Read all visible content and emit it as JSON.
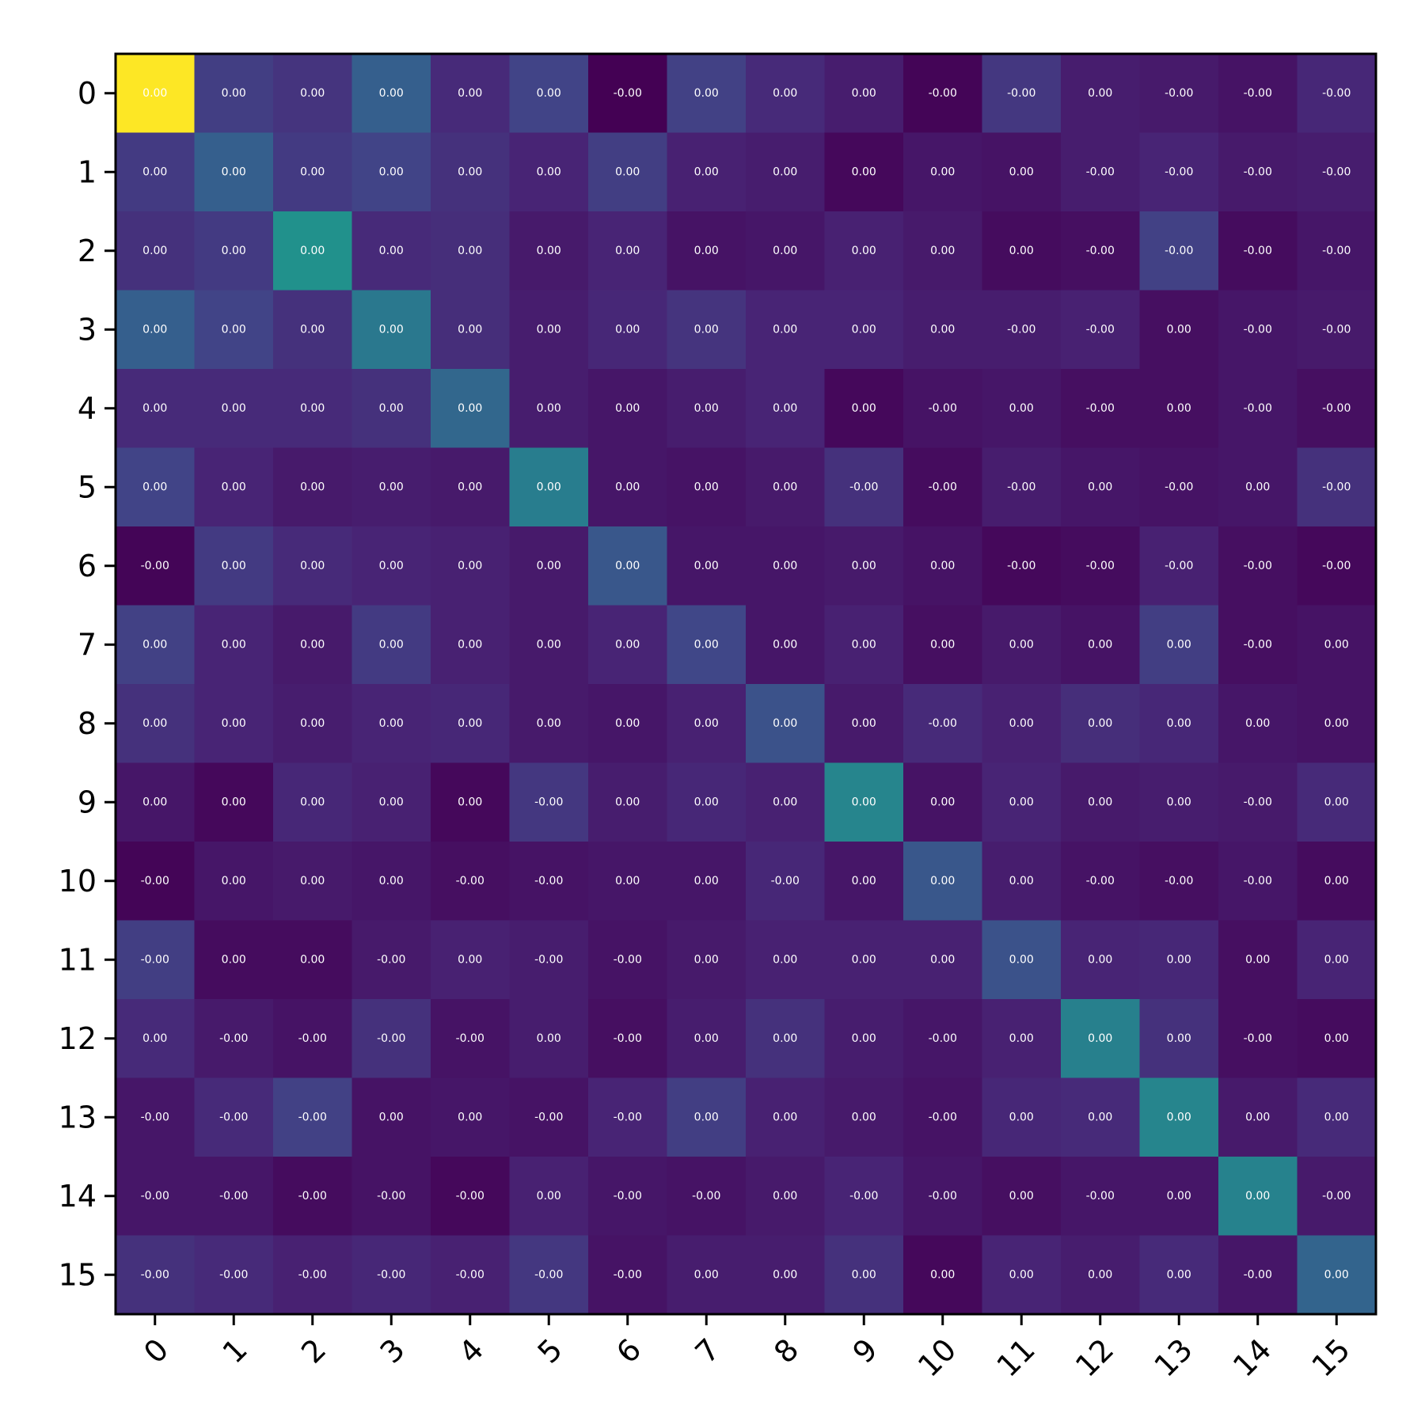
{
  "chart_data": {
    "type": "heatmap",
    "title": "",
    "xlabel": "",
    "ylabel": "",
    "colormap": "viridis",
    "x_categories": [
      "0",
      "1",
      "2",
      "3",
      "4",
      "5",
      "6",
      "7",
      "8",
      "9",
      "10",
      "11",
      "12",
      "13",
      "14",
      "15"
    ],
    "y_categories": [
      "0",
      "1",
      "2",
      "3",
      "4",
      "5",
      "6",
      "7",
      "8",
      "9",
      "10",
      "11",
      "12",
      "13",
      "14",
      "15"
    ],
    "x_tick_rotation_deg": 45,
    "color_range": [
      0,
      1
    ],
    "intensity": [
      [
        1.0,
        0.18,
        0.15,
        0.3,
        0.12,
        0.2,
        0.0,
        0.19,
        0.12,
        0.08,
        0.01,
        0.16,
        0.08,
        0.07,
        0.05,
        0.11
      ],
      [
        0.17,
        0.3,
        0.17,
        0.2,
        0.14,
        0.1,
        0.18,
        0.09,
        0.08,
        0.02,
        0.06,
        0.05,
        0.08,
        0.1,
        0.07,
        0.08
      ],
      [
        0.14,
        0.17,
        0.5,
        0.12,
        0.13,
        0.07,
        0.1,
        0.05,
        0.06,
        0.09,
        0.07,
        0.03,
        0.04,
        0.19,
        0.03,
        0.06
      ],
      [
        0.3,
        0.2,
        0.14,
        0.4,
        0.13,
        0.08,
        0.11,
        0.15,
        0.1,
        0.1,
        0.08,
        0.08,
        0.09,
        0.04,
        0.06,
        0.07
      ],
      [
        0.12,
        0.12,
        0.12,
        0.14,
        0.33,
        0.08,
        0.06,
        0.08,
        0.1,
        0.02,
        0.05,
        0.06,
        0.04,
        0.04,
        0.06,
        0.04
      ],
      [
        0.2,
        0.1,
        0.07,
        0.08,
        0.07,
        0.42,
        0.06,
        0.05,
        0.07,
        0.14,
        0.03,
        0.08,
        0.06,
        0.05,
        0.06,
        0.14
      ],
      [
        0.01,
        0.17,
        0.12,
        0.1,
        0.09,
        0.07,
        0.27,
        0.06,
        0.06,
        0.07,
        0.05,
        0.02,
        0.03,
        0.09,
        0.04,
        0.02
      ],
      [
        0.19,
        0.1,
        0.07,
        0.17,
        0.09,
        0.07,
        0.1,
        0.21,
        0.06,
        0.09,
        0.04,
        0.07,
        0.05,
        0.18,
        0.04,
        0.05
      ],
      [
        0.14,
        0.1,
        0.08,
        0.1,
        0.11,
        0.07,
        0.06,
        0.09,
        0.25,
        0.07,
        0.12,
        0.09,
        0.13,
        0.11,
        0.06,
        0.05
      ],
      [
        0.06,
        0.02,
        0.11,
        0.09,
        0.02,
        0.16,
        0.08,
        0.11,
        0.09,
        0.45,
        0.05,
        0.1,
        0.07,
        0.08,
        0.07,
        0.12
      ],
      [
        0.01,
        0.06,
        0.07,
        0.06,
        0.04,
        0.05,
        0.06,
        0.06,
        0.11,
        0.06,
        0.27,
        0.08,
        0.05,
        0.04,
        0.06,
        0.03
      ],
      [
        0.18,
        0.03,
        0.03,
        0.07,
        0.09,
        0.08,
        0.05,
        0.07,
        0.09,
        0.09,
        0.09,
        0.25,
        0.1,
        0.11,
        0.04,
        0.1
      ],
      [
        0.12,
        0.07,
        0.05,
        0.14,
        0.05,
        0.08,
        0.04,
        0.08,
        0.14,
        0.08,
        0.06,
        0.09,
        0.43,
        0.14,
        0.04,
        0.03
      ],
      [
        0.06,
        0.12,
        0.19,
        0.05,
        0.06,
        0.05,
        0.1,
        0.18,
        0.09,
        0.07,
        0.05,
        0.11,
        0.12,
        0.45,
        0.07,
        0.12
      ],
      [
        0.06,
        0.06,
        0.03,
        0.05,
        0.02,
        0.09,
        0.06,
        0.05,
        0.07,
        0.1,
        0.06,
        0.04,
        0.06,
        0.06,
        0.44,
        0.07
      ],
      [
        0.14,
        0.12,
        0.09,
        0.11,
        0.09,
        0.16,
        0.05,
        0.08,
        0.08,
        0.14,
        0.02,
        0.1,
        0.08,
        0.12,
        0.06,
        0.32
      ]
    ],
    "cell_labels": [
      [
        "0.00",
        "0.00",
        "0.00",
        "0.00",
        "0.00",
        "0.00",
        "-0.00",
        "0.00",
        "0.00",
        "0.00",
        "-0.00",
        "-0.00",
        "0.00",
        "-0.00",
        "-0.00",
        "-0.00"
      ],
      [
        "0.00",
        "0.00",
        "0.00",
        "0.00",
        "0.00",
        "0.00",
        "0.00",
        "0.00",
        "0.00",
        "0.00",
        "0.00",
        "0.00",
        "-0.00",
        "-0.00",
        "-0.00",
        "-0.00"
      ],
      [
        "0.00",
        "0.00",
        "0.00",
        "0.00",
        "0.00",
        "0.00",
        "0.00",
        "0.00",
        "0.00",
        "0.00",
        "0.00",
        "0.00",
        "-0.00",
        "-0.00",
        "-0.00",
        "-0.00"
      ],
      [
        "0.00",
        "0.00",
        "0.00",
        "0.00",
        "0.00",
        "0.00",
        "0.00",
        "0.00",
        "0.00",
        "0.00",
        "0.00",
        "-0.00",
        "-0.00",
        "0.00",
        "-0.00",
        "-0.00"
      ],
      [
        "0.00",
        "0.00",
        "0.00",
        "0.00",
        "0.00",
        "0.00",
        "0.00",
        "0.00",
        "0.00",
        "0.00",
        "-0.00",
        "0.00",
        "-0.00",
        "0.00",
        "-0.00",
        "-0.00"
      ],
      [
        "0.00",
        "0.00",
        "0.00",
        "0.00",
        "0.00",
        "0.00",
        "0.00",
        "0.00",
        "0.00",
        "-0.00",
        "-0.00",
        "-0.00",
        "0.00",
        "-0.00",
        "0.00",
        "-0.00"
      ],
      [
        "-0.00",
        "0.00",
        "0.00",
        "0.00",
        "0.00",
        "0.00",
        "0.00",
        "0.00",
        "0.00",
        "0.00",
        "0.00",
        "-0.00",
        "-0.00",
        "-0.00",
        "-0.00",
        "-0.00"
      ],
      [
        "0.00",
        "0.00",
        "0.00",
        "0.00",
        "0.00",
        "0.00",
        "0.00",
        "0.00",
        "0.00",
        "0.00",
        "0.00",
        "0.00",
        "0.00",
        "0.00",
        "-0.00",
        "0.00"
      ],
      [
        "0.00",
        "0.00",
        "0.00",
        "0.00",
        "0.00",
        "0.00",
        "0.00",
        "0.00",
        "0.00",
        "0.00",
        "-0.00",
        "0.00",
        "0.00",
        "0.00",
        "0.00",
        "0.00"
      ],
      [
        "0.00",
        "0.00",
        "0.00",
        "0.00",
        "0.00",
        "-0.00",
        "0.00",
        "0.00",
        "0.00",
        "0.00",
        "0.00",
        "0.00",
        "0.00",
        "0.00",
        "-0.00",
        "0.00"
      ],
      [
        "-0.00",
        "0.00",
        "0.00",
        "0.00",
        "-0.00",
        "-0.00",
        "0.00",
        "0.00",
        "-0.00",
        "0.00",
        "0.00",
        "0.00",
        "-0.00",
        "-0.00",
        "-0.00",
        "0.00"
      ],
      [
        "-0.00",
        "0.00",
        "0.00",
        "-0.00",
        "0.00",
        "-0.00",
        "-0.00",
        "0.00",
        "0.00",
        "0.00",
        "0.00",
        "0.00",
        "0.00",
        "0.00",
        "0.00",
        "0.00"
      ],
      [
        "0.00",
        "-0.00",
        "-0.00",
        "-0.00",
        "-0.00",
        "0.00",
        "-0.00",
        "0.00",
        "0.00",
        "0.00",
        "-0.00",
        "0.00",
        "0.00",
        "0.00",
        "-0.00",
        "0.00"
      ],
      [
        "-0.00",
        "-0.00",
        "-0.00",
        "0.00",
        "0.00",
        "-0.00",
        "-0.00",
        "0.00",
        "0.00",
        "0.00",
        "-0.00",
        "0.00",
        "0.00",
        "0.00",
        "0.00",
        "0.00"
      ],
      [
        "-0.00",
        "-0.00",
        "-0.00",
        "-0.00",
        "-0.00",
        "0.00",
        "-0.00",
        "-0.00",
        "0.00",
        "-0.00",
        "-0.00",
        "0.00",
        "-0.00",
        "0.00",
        "0.00",
        "-0.00"
      ],
      [
        "-0.00",
        "-0.00",
        "-0.00",
        "-0.00",
        "-0.00",
        "-0.00",
        "-0.00",
        "0.00",
        "0.00",
        "0.00",
        "0.00",
        "0.00",
        "0.00",
        "0.00",
        "-0.00",
        "0.00"
      ]
    ],
    "colorbar": false,
    "grid": false
  }
}
